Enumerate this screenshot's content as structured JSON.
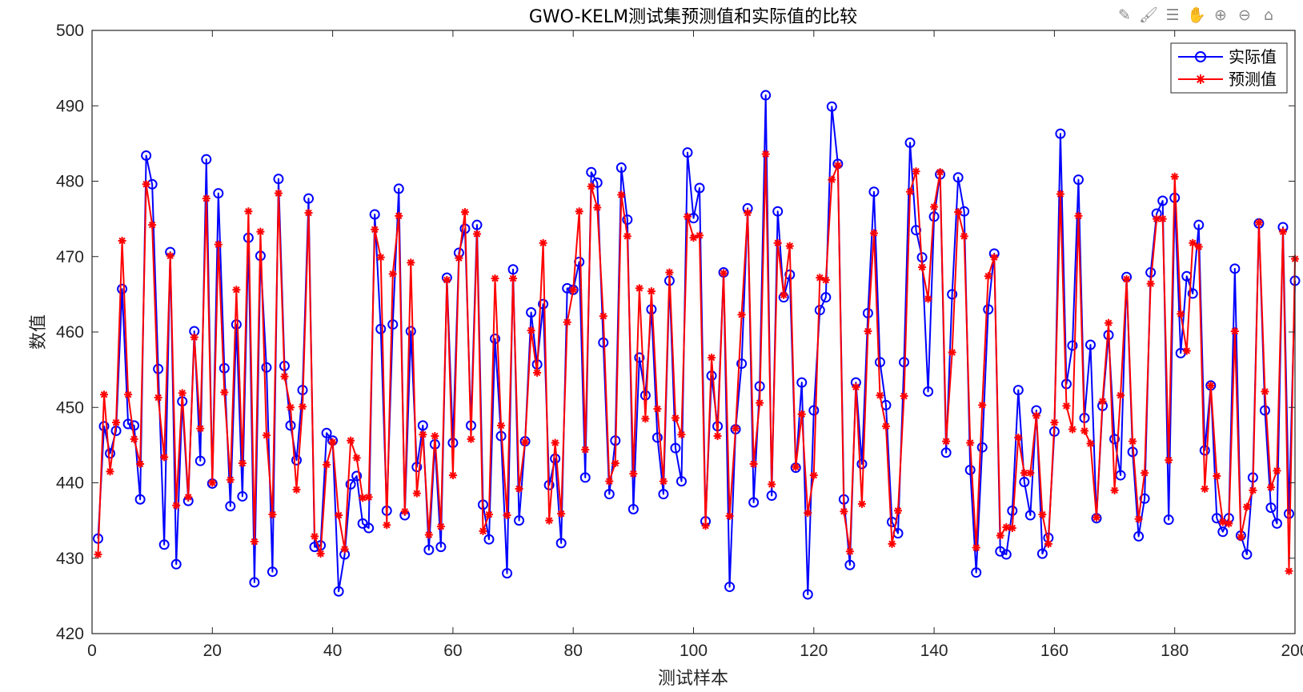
{
  "toolbar": [
    {
      "name": "edit-plot-icon",
      "glyph": "✎"
    },
    {
      "name": "brush-icon",
      "glyph": "🖌"
    },
    {
      "name": "data-tips-icon",
      "glyph": "☰"
    },
    {
      "name": "pan-icon",
      "glyph": "✋"
    },
    {
      "name": "zoom-in-icon",
      "glyph": "⊕"
    },
    {
      "name": "zoom-out-icon",
      "glyph": "⊖"
    },
    {
      "name": "home-icon",
      "glyph": "⌂"
    }
  ],
  "chart_data": {
    "type": "line",
    "title": "GWO-KELM测试集预测值和实际值的比较",
    "xlabel": "测试样本",
    "ylabel": "数值",
    "xlim": [
      0,
      200
    ],
    "ylim": [
      420,
      500
    ],
    "xticks": [
      0,
      20,
      40,
      60,
      80,
      100,
      120,
      140,
      160,
      180,
      200
    ],
    "yticks": [
      420,
      430,
      440,
      450,
      460,
      470,
      480,
      490,
      500
    ],
    "grid": false,
    "legend_position": "top-right",
    "x": [
      1,
      2,
      3,
      4,
      5,
      6,
      7,
      8,
      9,
      10,
      11,
      12,
      13,
      14,
      15,
      16,
      17,
      18,
      19,
      20,
      21,
      22,
      23,
      24,
      25,
      26,
      27,
      28,
      29,
      30,
      31,
      32,
      33,
      34,
      35,
      36,
      37,
      38,
      39,
      40,
      41,
      42,
      43,
      44,
      45,
      46,
      47,
      48,
      49,
      50,
      51,
      52,
      53,
      54,
      55,
      56,
      57,
      58,
      59,
      60,
      61,
      62,
      63,
      64,
      65,
      66,
      67,
      68,
      69,
      70,
      71,
      72,
      73,
      74,
      75,
      76,
      77,
      78,
      79,
      80,
      81,
      82,
      83,
      84,
      85,
      86,
      87,
      88,
      89,
      90,
      91,
      92,
      93,
      94,
      95,
      96,
      97,
      98,
      99,
      100,
      101,
      102,
      103,
      104,
      105,
      106,
      107,
      108,
      109,
      110,
      111,
      112,
      113,
      114,
      115,
      116,
      117,
      118,
      119,
      120,
      121,
      122,
      123,
      124,
      125,
      126,
      127,
      128,
      129,
      130,
      131,
      132,
      133,
      134,
      135,
      136,
      137,
      138,
      139,
      140,
      141,
      142,
      143,
      144,
      145,
      146,
      147,
      148,
      149,
      150,
      151,
      152,
      153,
      154,
      155,
      156,
      157,
      158,
      159,
      160,
      161,
      162,
      163,
      164,
      165,
      166,
      167,
      168,
      169,
      170,
      171,
      172,
      173,
      174,
      175,
      176,
      177,
      178,
      179,
      180,
      181,
      182,
      183,
      184,
      185,
      186,
      187,
      188,
      189,
      190,
      191,
      192,
      193,
      194,
      195,
      196,
      197,
      198,
      199,
      200
    ],
    "series": [
      {
        "name": "实际值",
        "color": "#0000ff",
        "marker": "circle",
        "values": [
          432.6,
          447.5,
          443.9,
          446.9,
          465.7,
          447.8,
          447.6,
          437.8,
          483.4,
          479.6,
          455.1,
          431.8,
          470.6,
          429.2,
          450.8,
          437.6,
          460.1,
          442.9,
          482.9,
          439.9,
          478.4,
          455.2,
          436.9,
          461.0,
          438.2,
          472.5,
          426.8,
          470.1,
          455.3,
          428.2,
          480.3,
          455.5,
          447.6,
          443.0,
          452.3,
          477.7,
          431.5,
          431.7,
          446.6,
          445.6,
          425.6,
          430.5,
          439.8,
          440.9,
          434.6,
          434.0,
          475.6,
          460.4,
          436.3,
          461.0,
          479.0,
          435.7,
          460.1,
          442.1,
          447.6,
          431.1,
          445.1,
          431.5,
          467.2,
          445.3,
          470.5,
          473.7,
          447.6,
          474.2,
          437.1,
          432.5,
          459.1,
          446.2,
          428.0,
          468.3,
          435.0,
          445.5,
          462.6,
          455.7,
          463.7,
          439.7,
          443.2,
          432.0,
          465.8,
          465.6,
          469.3,
          440.7,
          481.2,
          479.8,
          458.6,
          438.5,
          445.6,
          481.8,
          474.9,
          436.5,
          456.6,
          451.6,
          463.0,
          446.0,
          438.5,
          466.8,
          444.6,
          440.2,
          483.8,
          475.1,
          479.1,
          434.9,
          454.2,
          447.5,
          467.9,
          426.2,
          447.1,
          455.8,
          476.4,
          437.4,
          452.8,
          491.4,
          438.3,
          476.0,
          464.6,
          467.6,
          442.0,
          453.3,
          425.2,
          449.6,
          462.9,
          464.6,
          489.9,
          482.3,
          437.8,
          429.1,
          453.3,
          442.5,
          462.5,
          478.6,
          456.0,
          450.3,
          434.8,
          433.3,
          456.0,
          485.1,
          473.5,
          469.9,
          452.1,
          475.3,
          480.9,
          444.0,
          465.0,
          480.5,
          476.0,
          441.7,
          428.1,
          444.7,
          463.0,
          470.4,
          430.9,
          430.5,
          436.3,
          452.3,
          440.1,
          435.7,
          449.6,
          430.6,
          432.7,
          446.8,
          486.3,
          453.1,
          458.2,
          480.2,
          448.6,
          458.3,
          435.3,
          450.2,
          459.6,
          445.8,
          441.0,
          467.3,
          444.1,
          432.9,
          437.9,
          467.9,
          475.7,
          477.4,
          435.1,
          477.8,
          457.2,
          467.4,
          465.1,
          474.2,
          444.3,
          452.9,
          435.3,
          433.5,
          435.3,
          468.4,
          433.0,
          430.5,
          440.7,
          474.4,
          449.6,
          436.7,
          434.6,
          473.9,
          435.9,
          466.8
        ]
      },
      {
        "name": "预测值",
        "color": "#ff0000",
        "marker": "asterisk",
        "values": [
          430.5,
          451.7,
          441.5,
          448.0,
          472.1,
          451.7,
          445.8,
          442.5,
          479.6,
          474.2,
          451.3,
          443.4,
          470.1,
          437.0,
          451.9,
          438.1,
          459.3,
          447.2,
          477.7,
          440.0,
          471.6,
          452.0,
          440.4,
          465.6,
          442.6,
          476.0,
          432.2,
          473.3,
          446.3,
          435.8,
          478.4,
          454.1,
          450.0,
          439.1,
          450.1,
          475.8,
          432.9,
          430.6,
          442.4,
          445.4,
          435.7,
          431.2,
          445.6,
          443.3,
          438.0,
          438.1,
          473.6,
          469.9,
          434.4,
          467.7,
          475.4,
          436.2,
          469.2,
          438.6,
          446.4,
          433.1,
          446.2,
          434.2,
          466.9,
          441.0,
          469.8,
          475.9,
          445.8,
          473.0,
          433.6,
          435.8,
          467.1,
          447.6,
          435.7,
          467.1,
          439.2,
          445.4,
          460.2,
          454.6,
          471.8,
          435.0,
          445.3,
          435.9,
          461.3,
          465.6,
          476.0,
          444.4,
          479.3,
          476.5,
          462.1,
          440.2,
          442.6,
          478.2,
          472.7,
          441.2,
          465.8,
          448.5,
          465.4,
          449.8,
          440.2,
          467.9,
          448.6,
          446.4,
          475.3,
          472.5,
          472.8,
          434.3,
          456.6,
          446.2,
          467.8,
          435.6,
          447.2,
          462.3,
          475.8,
          442.5,
          450.6,
          483.6,
          439.8,
          471.8,
          464.9,
          471.4,
          442.1,
          449.1,
          436.0,
          441.0,
          467.2,
          466.9,
          480.2,
          482.1,
          436.2,
          430.9,
          452.7,
          437.2,
          460.1,
          473.1,
          451.6,
          447.5,
          431.9,
          436.3,
          451.5,
          478.6,
          481.3,
          468.6,
          464.4,
          476.6,
          481.2,
          445.5,
          457.3,
          475.9,
          472.7,
          445.3,
          431.4,
          450.3,
          467.4,
          469.9,
          433.0,
          434.1,
          434.0,
          446.0,
          441.3,
          441.3,
          448.9,
          435.8,
          431.9,
          448.0,
          478.3,
          450.2,
          447.1,
          475.4,
          446.9,
          445.2,
          435.4,
          450.8,
          461.2,
          439.0,
          451.6,
          467.0,
          445.5,
          435.2,
          441.3,
          466.4,
          475.0,
          475.0,
          443.0,
          480.6,
          462.4,
          457.5,
          471.8,
          471.3,
          439.2,
          452.9,
          440.9,
          434.8,
          434.6,
          460.1,
          432.8,
          436.8,
          439.0,
          474.5,
          452.1,
          439.4,
          441.6,
          473.3,
          428.3,
          469.7
        ]
      }
    ]
  }
}
